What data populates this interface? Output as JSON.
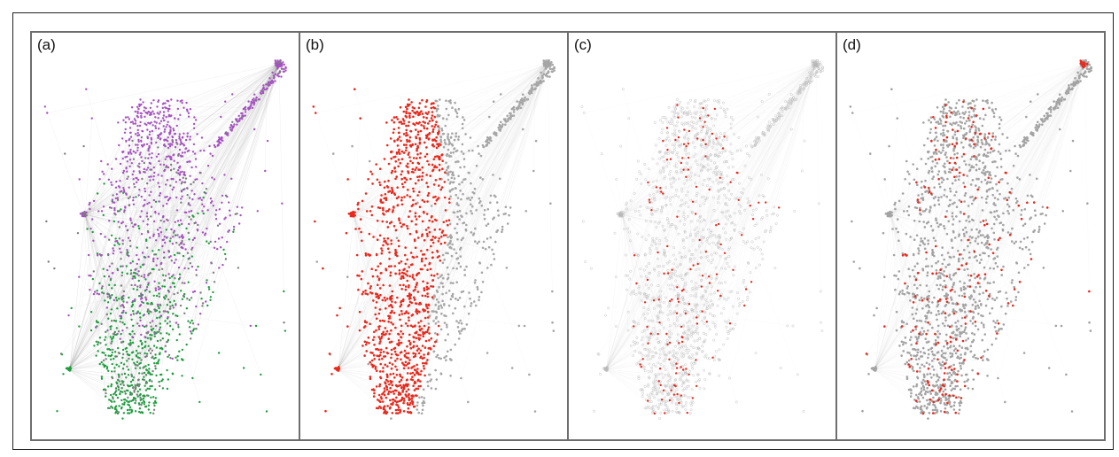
{
  "figure": {
    "panels": [
      {
        "label": "(a)",
        "mode": "groups",
        "colors": {
          "edge": "#9a9a9a",
          "purple": "#a552c0",
          "green": "#1e9e3e",
          "gray": "#7d7d7d"
        }
      },
      {
        "label": "(b)",
        "mode": "left-red",
        "colors": {
          "edge": "#b0b0b0",
          "red": "#e8291c",
          "gray": "#a6a6a6"
        }
      },
      {
        "label": "(c)",
        "mode": "sparse-red",
        "colors": {
          "edge": "#c8c8c8",
          "red": "#e8291c",
          "hollow": "#b8b8b8"
        }
      },
      {
        "label": "(d)",
        "mode": "mixed-red",
        "colors": {
          "edge": "#bdbdbd",
          "red": "#e8291c",
          "gray": "#a3a3a3"
        }
      }
    ]
  }
}
